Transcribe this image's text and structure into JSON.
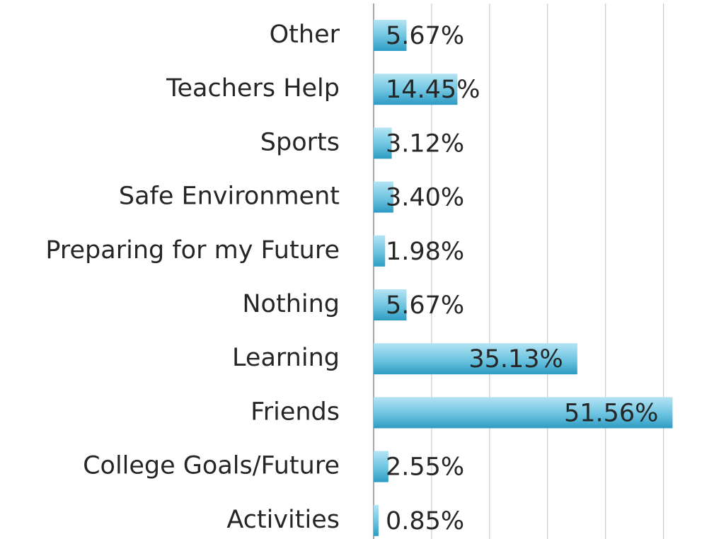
{
  "chart_data": {
    "type": "bar",
    "orientation": "horizontal",
    "categories": [
      "Other",
      "Teachers Help",
      "Sports",
      "Safe Environment",
      "Preparing for my Future",
      "Nothing",
      "Learning",
      "Friends",
      "College Goals/Future",
      "Activities"
    ],
    "values": [
      5.67,
      14.45,
      3.12,
      3.4,
      1.98,
      5.67,
      35.13,
      51.56,
      2.55,
      0.85
    ],
    "value_labels": [
      "5.67%",
      "14.45%",
      "3.12%",
      "3.40%",
      "1.98%",
      "5.67%",
      "35.13%",
      "51.56%",
      "2.55%",
      "0.85%"
    ],
    "color": "#3aa6cc",
    "xlim": [
      0,
      57
    ],
    "xticks": [
      0,
      10,
      20,
      30,
      40,
      50
    ],
    "grid": true
  }
}
